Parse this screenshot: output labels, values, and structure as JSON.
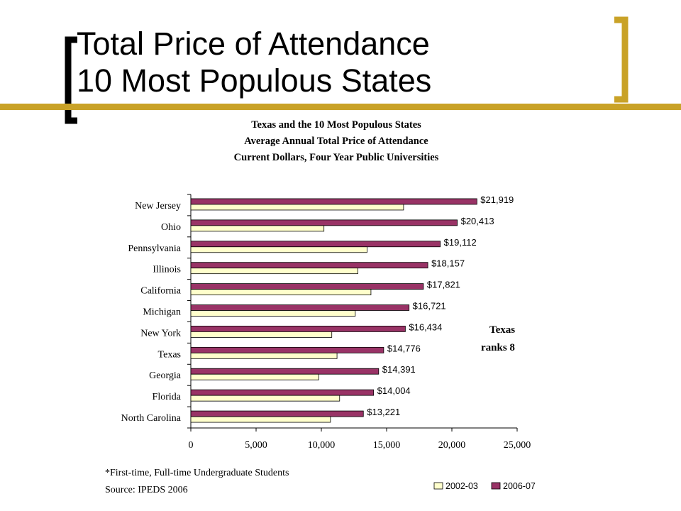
{
  "slide": {
    "title_line1": "Total Price of Attendance",
    "title_line2": "10 Most Populous States",
    "accent_color": "#C9A227",
    "bar_color_light": "#FFFFCC",
    "bar_color_dark": "#993366"
  },
  "chart_data": {
    "type": "bar",
    "orientation": "horizontal",
    "title_lines": [
      "Texas and the 10 Most Populous States",
      "Average Annual Total Price of Attendance",
      "Current Dollars, Four Year Public Universities"
    ],
    "categories": [
      "New Jersey",
      "Ohio",
      "Pennsylvania",
      "Illinois",
      "California",
      "Michigan",
      "New York",
      "Texas",
      "Georgia",
      "Florida",
      "North Carolina"
    ],
    "series": [
      {
        "name": "2002-03",
        "values": [
          16300,
          10200,
          13500,
          12800,
          13800,
          12600,
          10800,
          11200,
          9800,
          11400,
          10700
        ],
        "color": "#FFFFCC"
      },
      {
        "name": "2006-07",
        "values": [
          21919,
          20413,
          19112,
          18157,
          17821,
          16721,
          16434,
          14776,
          14391,
          14004,
          13221
        ],
        "color": "#993366"
      }
    ],
    "data_labels": [
      "$21,919",
      "$20,413",
      "$19,112",
      "$18,157",
      "$17,821",
      "$16,721",
      "$16,434",
      "$14,776",
      "$14,391",
      "$14,004",
      "$13,221"
    ],
    "x_ticks": [
      "0",
      "5,000",
      "10,000",
      "15,000",
      "20,000",
      "25,000"
    ],
    "xlim": [
      0,
      25000
    ],
    "grid": false,
    "legend_position": "bottom-right",
    "annotation_line1": "Texas",
    "annotation_line2": "ranks  8",
    "footnote": "*First-time, Full-time Undergraduate Students",
    "source": "Source: IPEDS 2006"
  }
}
